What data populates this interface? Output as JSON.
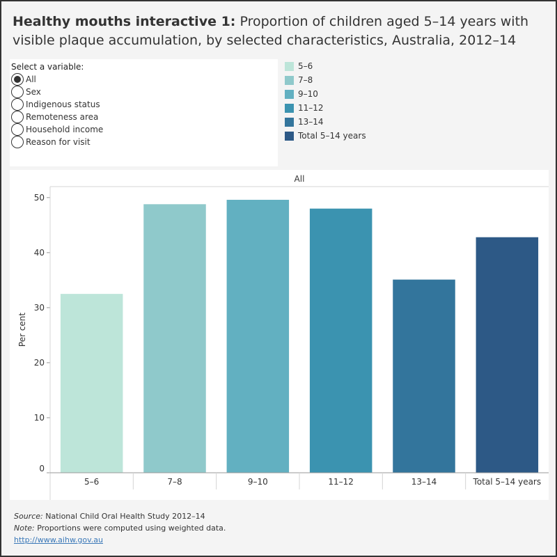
{
  "header": {
    "title_bold": "Healthy mouths interactive 1:",
    "title_rest": " Proportion of children aged 5–14 years with visible plaque accumulation, by selected characteristics, Australia, 2012–14"
  },
  "variable_selector": {
    "label": "Select a variable:",
    "selected": "All",
    "options": [
      "All",
      "Sex",
      "Indigenous status",
      "Remoteness area",
      "Household income",
      "Reason for visit"
    ]
  },
  "legend": {
    "items": [
      {
        "label": "5–6",
        "color": "#bde5d9"
      },
      {
        "label": "7–8",
        "color": "#8fc9cb"
      },
      {
        "label": "9–10",
        "color": "#62b0c1"
      },
      {
        "label": "11–12",
        "color": "#3b93b0"
      },
      {
        "label": "13–14",
        "color": "#33759c"
      },
      {
        "label": "Total 5–14 years",
        "color": "#2d5986"
      }
    ]
  },
  "chart_data": {
    "type": "bar",
    "panel_header": "All",
    "categories": [
      "5–6",
      "7–8",
      "9–10",
      "11–12",
      "13–14",
      "Total 5–14 years"
    ],
    "values": [
      32.5,
      48.8,
      49.6,
      48.0,
      35.1,
      42.8
    ],
    "colors": [
      "#bde5d9",
      "#8fc9cb",
      "#62b0c1",
      "#3b93b0",
      "#33759c",
      "#2d5986"
    ],
    "xlabel": "",
    "ylabel": "Per cent",
    "ylim": [
      0,
      52
    ],
    "yticks": [
      0,
      10,
      20,
      30,
      40,
      50
    ],
    "grid": false
  },
  "footer": {
    "source_label": "Source:",
    "source_text": " National Child Oral Health Study 2012–14",
    "note_label": "Note:",
    "note_text": " Proportions were computed using weighted data.",
    "link_text": "http://www.aihw.gov.au"
  }
}
